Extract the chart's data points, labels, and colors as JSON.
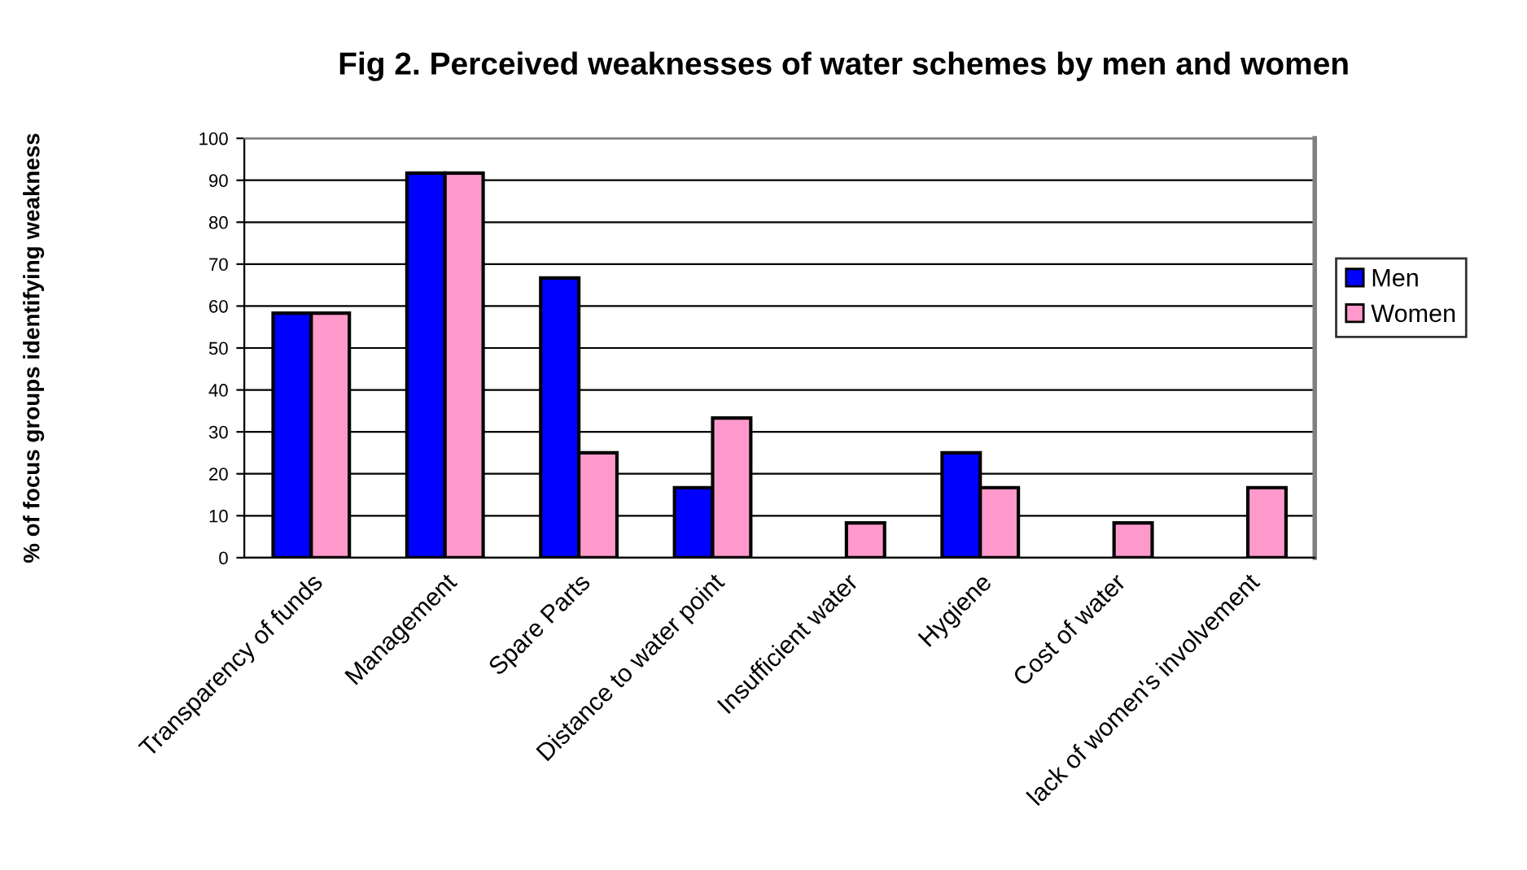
{
  "chart_data": {
    "type": "bar",
    "title": "Fig 2. Perceived weaknesses of water schemes by men and women",
    "ylabel": "% of focus groups identifying weakness",
    "categories": [
      "Transparency of funds",
      "Management",
      "Spare Parts",
      "Distance to water point",
      "Insufficient water",
      "Hygiene",
      "Cost of water",
      "lack of women's involvement"
    ],
    "series": [
      {
        "name": "Men",
        "color": "#0000ff",
        "values": [
          58.3,
          91.7,
          66.7,
          16.7,
          0,
          25,
          0,
          0
        ]
      },
      {
        "name": "Women",
        "color": "#ff99cc",
        "values": [
          58.3,
          91.7,
          25,
          33.3,
          8.3,
          16.7,
          8.3,
          16.7
        ]
      }
    ],
    "ylim": [
      0,
      100
    ],
    "yticks": [
      0,
      10,
      20,
      30,
      40,
      50,
      60,
      70,
      80,
      90,
      100
    ],
    "grid": "y",
    "legend": "right"
  }
}
